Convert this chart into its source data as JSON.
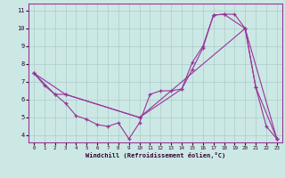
{
  "bg_color": "#cce8e4",
  "grid_color": "#aacccc",
  "line_color": "#993399",
  "xlabel": "Windchill (Refroidissement éolien,°C)",
  "xlim_min": -0.5,
  "xlim_max": 23.5,
  "ylim_min": 3.6,
  "ylim_max": 11.4,
  "xticks": [
    0,
    1,
    2,
    3,
    4,
    5,
    6,
    7,
    8,
    9,
    10,
    11,
    12,
    13,
    14,
    15,
    16,
    17,
    18,
    19,
    20,
    21,
    22,
    23
  ],
  "yticks": [
    4,
    5,
    6,
    7,
    8,
    9,
    10,
    11
  ],
  "series1_x": [
    0,
    1,
    2,
    3,
    4,
    5,
    6,
    7,
    8,
    9,
    10,
    11,
    12,
    13,
    14,
    15,
    16,
    17,
    18,
    19,
    20,
    21,
    22,
    23
  ],
  "series1_y": [
    7.5,
    6.8,
    6.3,
    5.8,
    5.1,
    4.9,
    4.6,
    4.5,
    4.7,
    3.8,
    4.7,
    6.3,
    6.5,
    6.5,
    6.6,
    8.1,
    9.0,
    10.75,
    10.8,
    10.8,
    10.0,
    6.7,
    4.5,
    3.8
  ],
  "series2_x": [
    0,
    2,
    3,
    10,
    14,
    15,
    16,
    17,
    18,
    20,
    21,
    23
  ],
  "series2_y": [
    7.5,
    6.3,
    6.3,
    5.0,
    6.6,
    7.7,
    8.9,
    10.75,
    10.8,
    10.0,
    6.7,
    3.8
  ],
  "series3_x": [
    0,
    3,
    10,
    20,
    23
  ],
  "series3_y": [
    7.5,
    6.3,
    5.0,
    10.0,
    3.8
  ]
}
